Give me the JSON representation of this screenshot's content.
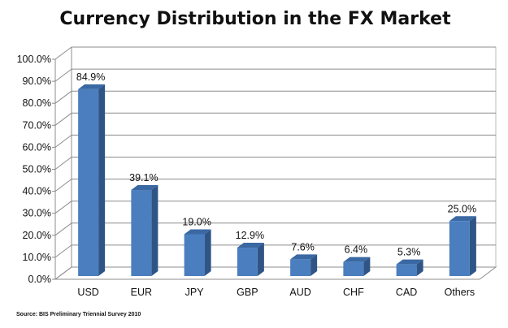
{
  "chart_data": {
    "type": "bar",
    "title": "Currency Distribution in the FX Market",
    "categories": [
      "USD",
      "EUR",
      "JPY",
      "GBP",
      "AUD",
      "CHF",
      "CAD",
      "Others"
    ],
    "values": [
      84.9,
      39.1,
      19.0,
      12.9,
      7.6,
      6.4,
      5.3,
      25.0
    ],
    "data_labels": [
      "84.9%",
      "39.1%",
      "19.0%",
      "12.9%",
      "7.6%",
      "6.4%",
      "5.3%",
      "25.0%"
    ],
    "xlabel": "",
    "ylabel": "",
    "ylim": [
      0,
      100
    ],
    "yticks": [
      "0.0%",
      "10.0%",
      "20.0%",
      "30.0%",
      "40.0%",
      "50.0%",
      "60.0%",
      "70.0%",
      "80.0%",
      "90.0%",
      "100.0%"
    ],
    "grid": true,
    "style": "3d-column",
    "bar_color": "#4a7ebf",
    "bar_side_color": "#2f5486",
    "bar_top_color": "#3a68a3",
    "source": "Source: BIS Preliminary Triennial Survey  2010"
  }
}
